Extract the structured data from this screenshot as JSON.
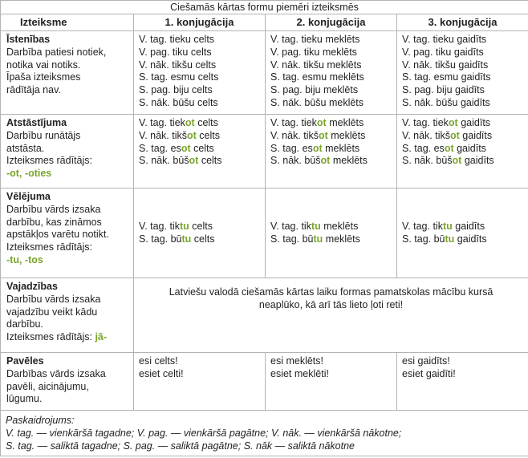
{
  "caption": "Ciešamās kārtas formu piemēri izteiksmēs",
  "headers": [
    "Izteiksme",
    "1. konjugācija",
    "2. konjugācija",
    "3. konjugācija"
  ],
  "rows": [
    {
      "name": "Īstenības",
      "desc": [
        "Darbība  patiesi notiek,",
        "notika vai notiks.",
        "Īpaša izteiksmes",
        "rādītāja nav."
      ],
      "marker_label": "",
      "marker": "",
      "cells": [
        [
          "V. tag. tieku celts",
          "V. pag. tiku celts",
          "V. nāk. tikšu celts",
          "S. tag. esmu celts",
          "S. pag. biju celts",
          "S. nāk. būšu celts"
        ],
        [
          "V. tag. tieku meklēts",
          "V. pag. tiku meklēts",
          "V. nāk. tikšu meklēts",
          "S. tag. esmu meklēts",
          "S. pag. biju meklēts",
          "S. nāk. būšu meklēts"
        ],
        [
          "V. tag. tieku gaidīts",
          "V. pag. tiku gaidīts",
          "V. nāk. tikšu gaidīts",
          "S. tag. esmu gaidīts",
          "S. pag. biju gaidīts",
          "S. nāk. būšu gaidīts"
        ]
      ]
    },
    {
      "name": "Atstāstījuma",
      "desc": [
        "Darbību runātājs",
        "atstāsta."
      ],
      "marker_label": "Izteiksmes rādītājs:",
      "marker": "-ot, -oties",
      "cells": [
        [
          [
            "V. tag. tiek",
            "ot",
            " celts"
          ],
          [
            "V. nāk. tikš",
            "ot",
            " celts"
          ],
          [
            "S. tag. es",
            "ot",
            " celts"
          ],
          [
            "S. nāk. būš",
            "ot",
            " celts"
          ]
        ],
        [
          [
            "V. tag. tiek",
            "ot",
            " meklēts"
          ],
          [
            "V. nāk. tikš",
            "ot",
            " meklēts"
          ],
          [
            "S. tag. es",
            "ot",
            " meklēts"
          ],
          [
            "S. nāk. būš",
            "ot",
            " meklēts"
          ]
        ],
        [
          [
            "V. tag. tiek",
            "ot",
            " gaidīts"
          ],
          [
            "V. nāk. tikš",
            "ot",
            " gaidīts"
          ],
          [
            "S. tag. es",
            "ot",
            " gaidīts"
          ],
          [
            "S. nāk. būš",
            "ot",
            " gaidīts"
          ]
        ]
      ]
    },
    {
      "name": "Vēlējuma",
      "desc": [
        "Darbību vārds izsaka",
        "darbību, kas zināmos",
        "apstākļos varētu notikt."
      ],
      "marker_label": "Izteiksmes rādītājs:",
      "marker": "-tu, -tos",
      "cells": [
        [
          [
            "V. tag. tik",
            "tu",
            " celts"
          ],
          [
            "S. tag. bū",
            "tu",
            " celts"
          ]
        ],
        [
          [
            "V. tag. tik",
            "tu",
            " meklēts"
          ],
          [
            "S. tag. bū",
            "tu",
            " meklēts"
          ]
        ],
        [
          [
            "V. tag. tik",
            "tu",
            " gaidīts"
          ],
          [
            "S. tag. bū",
            "tu",
            " gaidīts"
          ]
        ]
      ]
    },
    {
      "name": "Vajadzības",
      "desc": [
        "Darbību vārds izsaka",
        "vajadzību veikt kādu",
        "darbību."
      ],
      "marker_label": "Izteiksmes rādītājs: ",
      "marker": "jā-",
      "merged_text": "Latviešu valodā ciešamās kārtas laiku formas pamatskolas mācību kursā neaplūko, kā arī tās lieto ļoti reti!"
    },
    {
      "name": "Pavēles",
      "desc": [
        "Darbības vārds izsaka",
        "pavēli, aicinājumu,",
        "lūgumu."
      ],
      "marker_label": "",
      "marker": "",
      "cells": [
        [
          "esi celts!",
          "esiet celti!"
        ],
        [
          "esi meklēts!",
          "esiet meklēti!"
        ],
        [
          "esi gaidīts!",
          "esiet gaidīti!"
        ]
      ]
    }
  ],
  "notes": {
    "title": "Paskaidrojums:",
    "lines": [
      "V. tag. — vienkāršā tagadne; V. pag. — vienkāršā pagātne; V. nāk. — vienkāršā nākotne;",
      "S. tag. — saliktā tagadne; S. pag. — saliktā pagātne; S. nāk — saliktā nākotne"
    ]
  },
  "accent_color": "#7aa52b"
}
